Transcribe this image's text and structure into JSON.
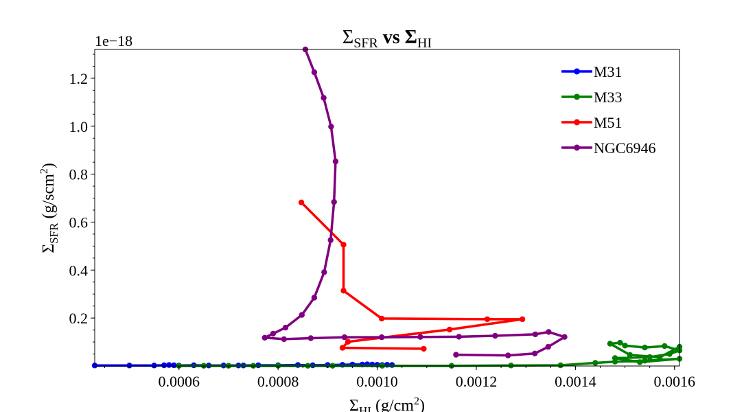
{
  "chart_data": {
    "type": "line",
    "title": {
      "base": "Σ",
      "sub1": "SFR",
      "mid": " vs Σ",
      "sub2": "HI"
    },
    "xlabel": {
      "base": "Σ",
      "sub": "HI",
      "rest": " (g/cm",
      "sup": "2",
      "end": ")"
    },
    "ylabel": {
      "base": "Σ",
      "sub": "SFR",
      "rest": " (g/scm",
      "sup": "2",
      "end": ")"
    },
    "y_offset_label": "1e−18",
    "xlim": [
      0.00043,
      0.00161
    ],
    "ylim": [
      0.0,
      1.32
    ],
    "x_ticks": [
      0.0006,
      0.0008,
      0.001,
      0.0012,
      0.0014,
      0.0016
    ],
    "x_tick_labels": [
      "0.0006",
      "0.0008",
      "0.0010",
      "0.0012",
      "0.0014",
      "0.0016"
    ],
    "y_ticks": [
      0.2,
      0.4,
      0.6,
      0.8,
      1.0,
      1.2
    ],
    "y_tick_labels": [
      "0.2",
      "0.4",
      "0.6",
      "0.8",
      "1.0",
      "1.2"
    ],
    "grid": false,
    "legend_position": "top-right",
    "series": [
      {
        "name": "M31",
        "color": "#0000ff",
        "points": [
          [
            0.00043,
            0.002
          ],
          [
            0.0005,
            0.002
          ],
          [
            0.00055,
            0.002
          ],
          [
            0.00057,
            0.003
          ],
          [
            0.00058,
            0.004
          ],
          [
            0.00059,
            0.003
          ],
          [
            0.0006,
            0.002
          ],
          [
            0.00063,
            0.003
          ],
          [
            0.00066,
            0.002
          ],
          [
            0.00069,
            0.002
          ],
          [
            0.00072,
            0.002
          ],
          [
            0.00073,
            0.002
          ],
          [
            0.00076,
            0.003
          ],
          [
            0.0008,
            0.003
          ],
          [
            0.00084,
            0.004
          ],
          [
            0.00087,
            0.003
          ],
          [
            0.0009,
            0.004
          ],
          [
            0.00093,
            0.005
          ],
          [
            0.00095,
            0.006
          ],
          [
            0.00097,
            0.006
          ],
          [
            0.00098,
            0.007
          ],
          [
            0.00099,
            0.006
          ],
          [
            0.001,
            0.005
          ],
          [
            0.00101,
            0.004
          ],
          [
            0.00102,
            0.005
          ],
          [
            0.00103,
            0.004
          ]
        ]
      },
      {
        "name": "M33",
        "color": "#008000",
        "points": [
          [
            0.0006,
            0.001
          ],
          [
            0.00065,
            0.001
          ],
          [
            0.0007,
            0.001
          ],
          [
            0.00075,
            0.001
          ],
          [
            0.0008,
            0.001
          ],
          [
            0.00086,
            0.001
          ],
          [
            0.00091,
            0.001
          ],
          [
            0.00101,
            0.001
          ],
          [
            0.00115,
            0.001
          ],
          [
            0.00127,
            0.002
          ],
          [
            0.00137,
            0.003
          ],
          [
            0.00144,
            0.013
          ],
          [
            0.00148,
            0.018
          ],
          [
            0.00154,
            0.022
          ],
          [
            0.00161,
            0.03
          ],
          [
            0.00153,
            0.016
          ],
          [
            0.00148,
            0.033
          ],
          [
            0.00155,
            0.037
          ],
          [
            0.00159,
            0.05
          ],
          [
            0.00161,
            0.065
          ],
          [
            0.00158,
            0.083
          ],
          [
            0.00154,
            0.077
          ],
          [
            0.0015,
            0.085
          ],
          [
            0.00149,
            0.097
          ],
          [
            0.00147,
            0.093
          ],
          [
            0.00151,
            0.046
          ],
          [
            0.00157,
            0.036
          ],
          [
            0.00161,
            0.08
          ]
        ]
      },
      {
        "name": "M51",
        "color": "#ff0000",
        "points": [
          [
            0.000847,
            0.682
          ],
          [
            0.000932,
            0.506
          ],
          [
            0.000932,
            0.314
          ],
          [
            0.001009,
            0.198
          ],
          [
            0.001222,
            0.195
          ],
          [
            0.001293,
            0.195
          ],
          [
            0.001146,
            0.152
          ],
          [
            0.000941,
            0.101
          ],
          [
            0.00093,
            0.076
          ],
          [
            0.001094,
            0.072
          ]
        ]
      },
      {
        "name": "NGC6946",
        "color": "#800080",
        "points": [
          [
            0.000855,
            1.32
          ],
          [
            0.000873,
            1.225
          ],
          [
            0.000892,
            1.118
          ],
          [
            0.000907,
            0.998
          ],
          [
            0.000916,
            0.853
          ],
          [
            0.000913,
            0.684
          ],
          [
            0.000906,
            0.525
          ],
          [
            0.000893,
            0.391
          ],
          [
            0.000873,
            0.285
          ],
          [
            0.000848,
            0.213
          ],
          [
            0.000815,
            0.16
          ],
          [
            0.00079,
            0.135
          ],
          [
            0.000773,
            0.118
          ],
          [
            0.000812,
            0.112
          ],
          [
            0.000866,
            0.116
          ],
          [
            0.000934,
            0.12
          ],
          [
            0.001009,
            0.12
          ],
          [
            0.001087,
            0.121
          ],
          [
            0.001165,
            0.122
          ],
          [
            0.001238,
            0.126
          ],
          [
            0.001319,
            0.132
          ],
          [
            0.001346,
            0.142
          ],
          [
            0.001378,
            0.121
          ],
          [
            0.001345,
            0.08
          ],
          [
            0.001318,
            0.052
          ],
          [
            0.001264,
            0.044
          ],
          [
            0.001159,
            0.047
          ]
        ]
      }
    ]
  }
}
